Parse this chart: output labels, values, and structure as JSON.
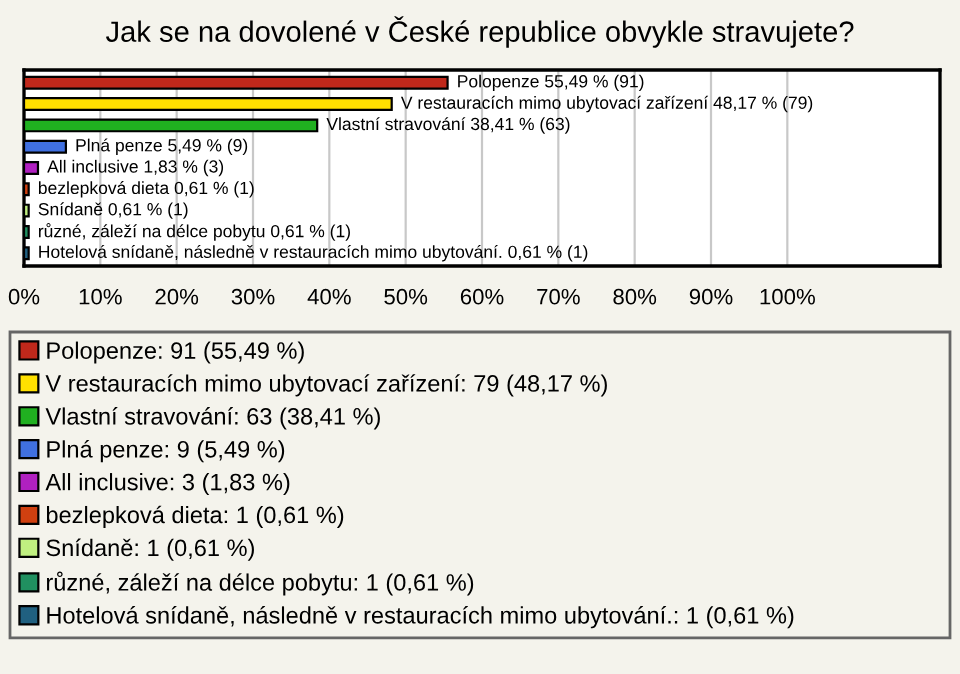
{
  "chart_data": {
    "type": "bar",
    "orientation": "horizontal",
    "title": "Jak se na dovolené v České republice obvykle stravujete?",
    "categories": [
      null,
      null,
      null,
      null,
      null,
      null,
      null,
      null,
      null
    ],
    "series": [
      {
        "name": "Polopenze: 91 (55,49 %)",
        "color": "#c0281b",
        "values": [
          55.49,
          null,
          null,
          null,
          null,
          null,
          null,
          null,
          null
        ],
        "value_labels": [
          "Polopenze 55,49 % (91)",
          null,
          null,
          null,
          null,
          null,
          null,
          null,
          null
        ]
      },
      {
        "name": "V restauracích mimo ubytovací zařízení: 79 (48,17 %)",
        "color": "#ffe000",
        "values": [
          null,
          48.17,
          null,
          null,
          null,
          null,
          null,
          null,
          null
        ],
        "value_labels": [
          null,
          "V restauracích mimo ubytovací zařízení 48,17 % (79)",
          null,
          null,
          null,
          null,
          null,
          null,
          null
        ]
      },
      {
        "name": "Vlastní stravování: 63 (38,41 %)",
        "color": "#20b020",
        "values": [
          null,
          null,
          38.41,
          null,
          null,
          null,
          null,
          null,
          null
        ],
        "value_labels": [
          null,
          null,
          "Vlastní stravování 38,41 % (63)",
          null,
          null,
          null,
          null,
          null,
          null
        ]
      },
      {
        "name": "Plná penze: 9 (5,49 %)",
        "color": "#4070e0",
        "values": [
          null,
          null,
          null,
          5.49,
          null,
          null,
          null,
          null,
          null
        ],
        "value_labels": [
          null,
          null,
          null,
          "Plná penze 5,49 % (9)",
          null,
          null,
          null,
          null,
          null
        ]
      },
      {
        "name": "All inclusive: 3 (1,83 %)",
        "color": "#b020c0",
        "values": [
          null,
          null,
          null,
          null,
          1.83,
          null,
          null,
          null,
          null
        ],
        "value_labels": [
          null,
          null,
          null,
          null,
          "All inclusive 1,83 % (3)",
          null,
          null,
          null,
          null
        ]
      },
      {
        "name": "bezlepková dieta: 1 (0,61 %)",
        "color": "#d04010",
        "values": [
          null,
          null,
          null,
          null,
          null,
          0.61,
          null,
          null,
          null
        ],
        "value_labels": [
          null,
          null,
          null,
          null,
          null,
          "bezlepková dieta 0,61 % (1)",
          null,
          null,
          null
        ]
      },
      {
        "name": "Snídaně: 1 (0,61 %)",
        "color": "#c0f080",
        "values": [
          null,
          null,
          null,
          null,
          null,
          null,
          0.61,
          null,
          null
        ],
        "value_labels": [
          null,
          null,
          null,
          null,
          null,
          null,
          "Snídaně 0,61 % (1)",
          null,
          null
        ]
      },
      {
        "name": "různé, záleží na délce pobytu: 1 (0,61 %)",
        "color": "#209060",
        "values": [
          null,
          null,
          null,
          null,
          null,
          null,
          null,
          0.61,
          null
        ],
        "value_labels": [
          null,
          null,
          null,
          null,
          null,
          null,
          null,
          "různé, záleží na délce pobytu 0,61 % (1)",
          null
        ]
      },
      {
        "name": "Hotelová snídaně, následně v restauracích mimo ubytování.: 1 (0,61 %)",
        "color": "#206080",
        "values": [
          null,
          null,
          null,
          null,
          null,
          null,
          null,
          null,
          0.61
        ],
        "value_labels": [
          null,
          null,
          null,
          null,
          null,
          null,
          null,
          null,
          "Hotelová snídaně, následně v restauracích mimo ubytování. 0,61 % (1)"
        ]
      }
    ],
    "xlim": [
      0,
      120
    ],
    "xticks": [
      {
        "value": 0,
        "label": "0%"
      },
      {
        "value": 10,
        "label": "10%"
      },
      {
        "value": 20,
        "label": "20%"
      },
      {
        "value": 30,
        "label": "30%"
      },
      {
        "value": 40,
        "label": "40%"
      },
      {
        "value": 50,
        "label": "50%"
      },
      {
        "value": 60,
        "label": "60%"
      },
      {
        "value": 70,
        "label": "70%"
      },
      {
        "value": 80,
        "label": "80%"
      },
      {
        "value": 90,
        "label": "90%"
      },
      {
        "value": 100,
        "label": "100%"
      }
    ],
    "grid": "x",
    "legend": "bottom"
  }
}
